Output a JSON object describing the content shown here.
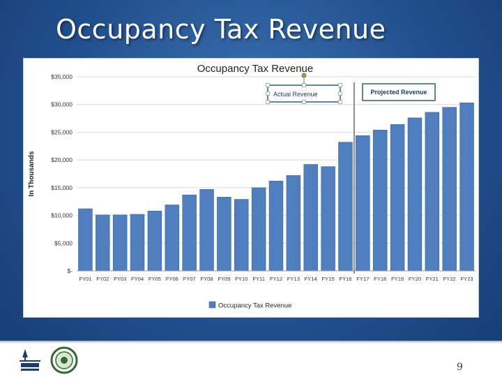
{
  "slide": {
    "title": "Occupancy Tax Revenue",
    "page_number": "9"
  },
  "colors": {
    "bar": "#4f7fbf",
    "bar_edge": "#3a679f",
    "grid": "#d9d9d9",
    "divider": "#8c8c8c",
    "annotation_border": "#2e5a8a"
  },
  "chart_data": {
    "type": "bar",
    "title": "Occupancy Tax Revenue",
    "ylabel": "In Thousands",
    "xlabel": "",
    "ylim": [
      0,
      35000
    ],
    "yticks": [
      0,
      5000,
      10000,
      15000,
      20000,
      25000,
      30000,
      35000
    ],
    "ytick_labels": [
      "$-",
      "$5,000",
      "$10,000",
      "$15,000",
      "$20,000",
      "$25,000",
      "$30,000",
      "$35,000"
    ],
    "grid": true,
    "legend": "bottom-center",
    "categories": [
      "FY01",
      "FY02",
      "FY03",
      "FY04",
      "FY05",
      "FY06",
      "FY07",
      "FY08",
      "FY09",
      "FY10",
      "FY11",
      "FY12",
      "FY13",
      "FY14",
      "FY15",
      "FY16",
      "FY17",
      "FY18",
      "FY19",
      "FY20",
      "FY21",
      "FY22",
      "FY23"
    ],
    "series": [
      {
        "name": "Occupancy Tax Revenue",
        "values": [
          11200,
          10100,
          10100,
          10200,
          10800,
          11900,
          13700,
          14700,
          13300,
          12900,
          15000,
          16200,
          17200,
          19200,
          18800,
          23200,
          24400,
          25400,
          26400,
          27600,
          28600,
          29500,
          30300
        ]
      }
    ],
    "annotations": [
      {
        "text": "Actual Revenue"
      },
      {
        "text": "Projected Revenue"
      }
    ],
    "divider_between": [
      "FY16",
      "FY17"
    ]
  }
}
